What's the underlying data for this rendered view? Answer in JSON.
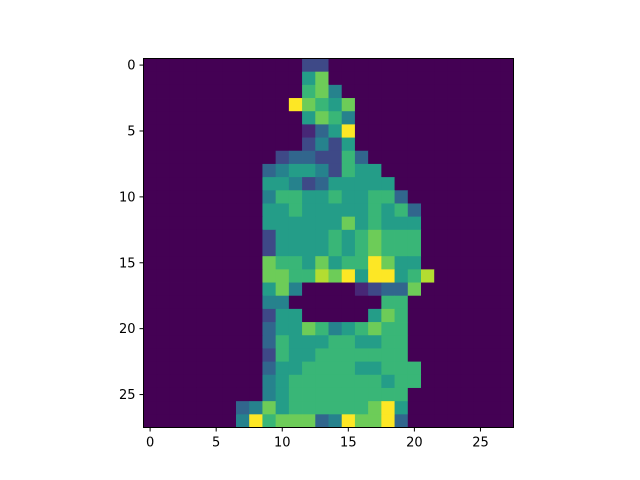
{
  "chart_data": {
    "type": "heatmap",
    "colormap": "viridis",
    "title": "",
    "xlabel": "",
    "ylabel": "",
    "xlim": [
      -0.5,
      27.5
    ],
    "ylim": [
      27.5,
      -0.5
    ],
    "xticks": [
      0,
      5,
      10,
      15,
      20,
      25
    ],
    "yticks": [
      0,
      5,
      10,
      15,
      20,
      25
    ],
    "xtick_labels": [
      "0",
      "5",
      "10",
      "15",
      "20",
      "25"
    ],
    "ytick_labels": [
      "0",
      "5",
      "10",
      "15",
      "20",
      "25"
    ],
    "grid": false,
    "value_range": [
      0,
      9
    ],
    "grid_size": [
      28,
      28
    ],
    "rows": [
      "0000000000002200000000000000",
      "0000000000005700000000000000",
      "0000000000006740000000000000",
      "0000000000097657000000000000",
      "0000000000005764000000000000",
      "0000000000001359000000000000",
      "0000000000002425000000000000",
      "0000000000233226300000000000",
      "0000000003455426550000000000",
      "0000000005542355555000000000",
      "0000000004665565566300000000",
      "0000000005565555565630000000",
      "0000000005555557565550000000",
      "0000000002555565676660000000",
      "0000000002555565676660000000",
      "0000000007665756697550000000",
      "0000000007766879599568000000",
      "0000000005740000123370000000",
      "0000000004400000006600000000",
      "0000000002550000057600000000",
      "0000000003557645676600000000",
      "0000000003655566556600000000",
      "0000000002655666666600000000",
      "0000000003556666556660000000",
      "0000000004566666665660000000",
      "0000000004566666666600000000",
      "0000000347566666679500000000",
      "0000000496777349779300000000"
    ]
  }
}
